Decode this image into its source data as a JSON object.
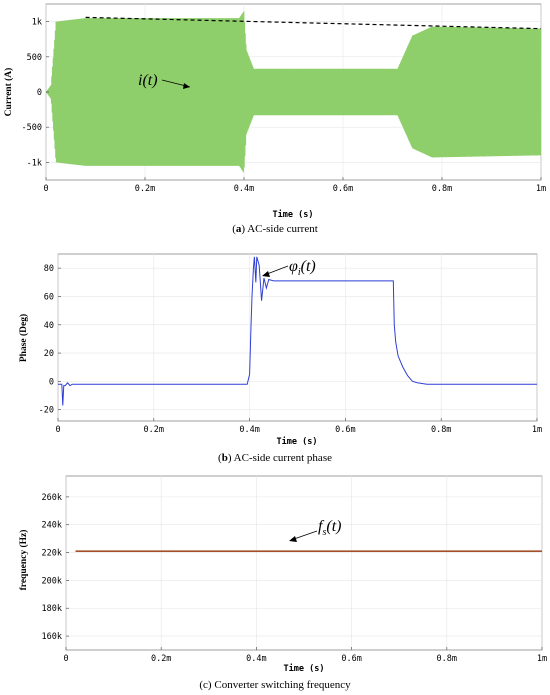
{
  "chart_data": [
    {
      "type": "line",
      "panel_label": "a",
      "caption": "AC-side current",
      "xlabel": "Time (s)",
      "ylabel": "Current (A)",
      "x_ticks": [
        "0",
        "0.2m",
        "0.4m",
        "0.6m",
        "0.8m",
        "1m"
      ],
      "y_ticks": [
        "1k",
        "500",
        "0",
        "-500",
        "-1k"
      ],
      "xlim": [
        0,
        0.001
      ],
      "ylim": [
        -1250,
        1250
      ],
      "series": [
        {
          "annotation": "i(t)",
          "color": "#8fcf6b",
          "style": "oscillating envelope",
          "envelope": [
            {
              "x": 0.0,
              "amp": 0
            },
            {
              "x": 1e-05,
              "amp": 100
            },
            {
              "x": 2e-05,
              "amp": 1000
            },
            {
              "x": 8e-05,
              "amp": 1050
            },
            {
              "x": 0.00039,
              "amp": 1050
            },
            {
              "x": 0.0004,
              "amp": 1150
            },
            {
              "x": 0.000405,
              "amp": 600
            },
            {
              "x": 0.00042,
              "amp": 330
            },
            {
              "x": 0.00071,
              "amp": 330
            },
            {
              "x": 0.00074,
              "amp": 800
            },
            {
              "x": 0.00078,
              "amp": 930
            },
            {
              "x": 0.001,
              "amp": 900
            }
          ]
        },
        {
          "color": "#000000",
          "style": "dashed",
          "x": [
            8e-05,
            0.001
          ],
          "values": [
            1060,
            900
          ]
        }
      ]
    },
    {
      "type": "line",
      "panel_label": "b",
      "caption": "AC-side current phase",
      "xlabel": "Time (s)",
      "ylabel": "Phase (Deg)",
      "x_ticks": [
        "0",
        "0.2m",
        "0.4m",
        "0.6m",
        "0.8m",
        "1m"
      ],
      "y_ticks": [
        "80",
        "60",
        "40",
        "20",
        "0",
        "-20"
      ],
      "xlim": [
        0,
        0.001
      ],
      "ylim": [
        -28,
        90
      ],
      "series": [
        {
          "annotation": "φ",
          "annotation_sub": "i",
          "annotation_tail": "(t)",
          "color": "#2f3fd6",
          "x": [
            0,
            8e-06,
            1e-05,
            1.2e-05,
            1.5e-05,
            2e-05,
            2.5e-05,
            3e-05,
            4e-05,
            0.0001,
            0.0002,
            0.0003,
            0.000395,
            0.0004,
            0.000403,
            0.000405,
            0.000408,
            0.00041,
            0.000413,
            0.000415,
            0.00042,
            0.000425,
            0.00043,
            0.000435,
            0.00044,
            0.00045,
            0.0005,
            0.0006,
            0.000695,
            0.0007,
            0.000702,
            0.000705,
            0.00071,
            0.00072,
            0.00073,
            0.00074,
            0.00075,
            0.00077,
            0.0008,
            0.0009,
            0.001
          ],
          "values": [
            -2,
            -2,
            -17,
            -3,
            -3,
            -1,
            -3,
            -2,
            -2,
            -2,
            -2,
            -2,
            -2,
            5,
            40,
            60,
            80,
            88,
            70,
            88,
            82,
            57,
            73,
            66,
            72,
            71,
            71,
            71,
            71,
            71,
            40,
            28,
            18,
            10,
            4,
            0,
            -1,
            -2,
            -2,
            -2,
            -2
          ]
        }
      ]
    },
    {
      "type": "line",
      "panel_label": "c",
      "caption": "Converter switching frequency",
      "xlabel": "Time (s)",
      "ylabel": "frequency (Hz)",
      "x_ticks": [
        "0",
        "0.2m",
        "0.4m",
        "0.6m",
        "0.8m",
        "1m"
      ],
      "y_ticks": [
        "260k",
        "240k",
        "220k",
        "200k",
        "180k",
        "160k"
      ],
      "xlim": [
        0,
        0.001
      ],
      "ylim": [
        150000,
        275000
      ],
      "series": [
        {
          "annotation": "f",
          "annotation_sub": "s",
          "annotation_tail": "(t)",
          "color": "#a5502a",
          "x": [
            2e-05,
            0.001
          ],
          "values": [
            221000,
            221000
          ]
        }
      ]
    }
  ]
}
